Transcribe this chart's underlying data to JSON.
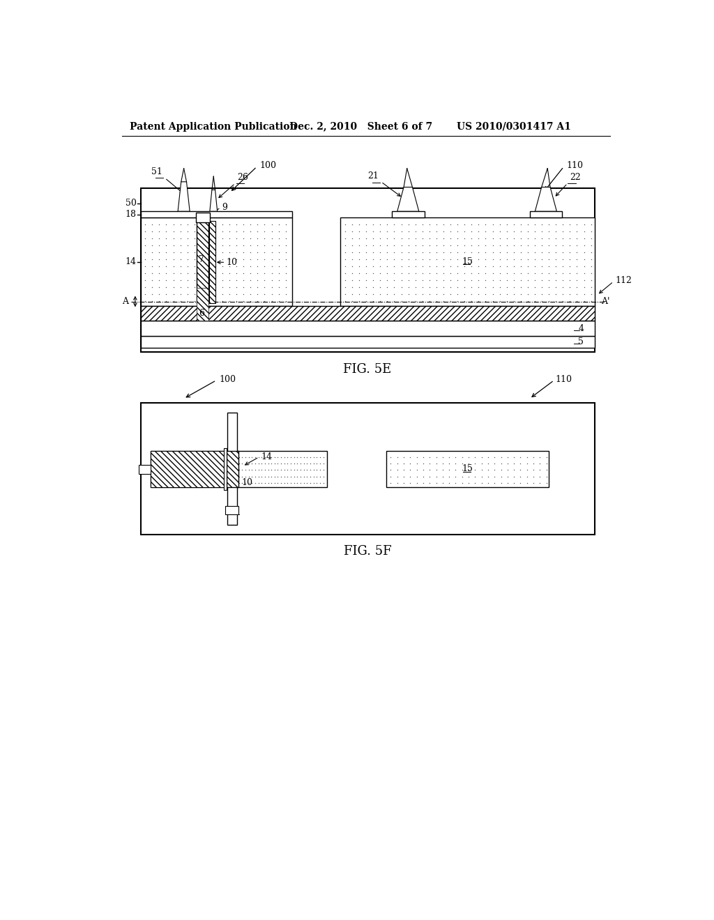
{
  "header_left": "Patent Application Publication",
  "header_center": "Dec. 2, 2010   Sheet 6 of 7",
  "header_right": "US 2010/0301417 A1",
  "fig5e_label": "FIG. 5E",
  "fig5f_label": "FIG. 5F",
  "bg_color": "#ffffff"
}
